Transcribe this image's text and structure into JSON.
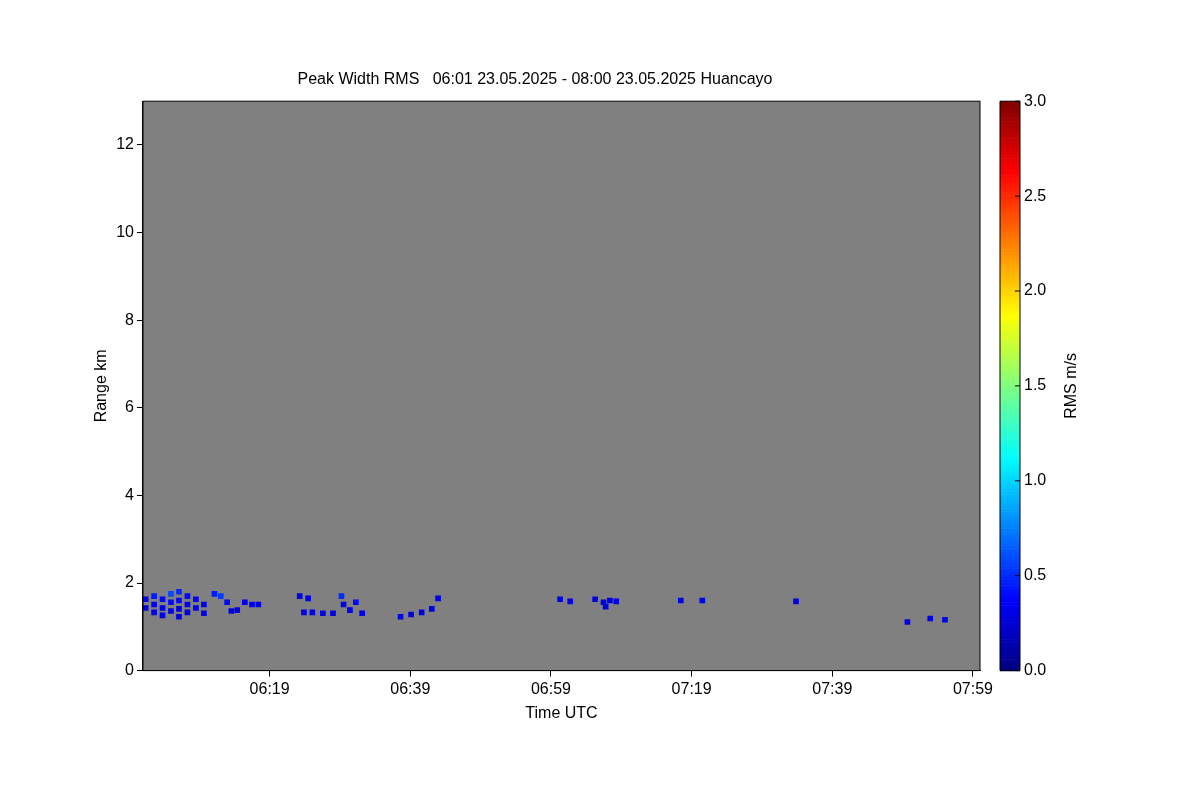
{
  "chart_data": {
    "type": "scatter",
    "title": "Peak Width RMS   06:01 23.05.2025 - 08:00 23.05.2025 Huancayo",
    "xlabel": "Time UTC",
    "ylabel": "Range km",
    "clabel": "RMS m/s",
    "marker": "square",
    "grid": false,
    "legend": false,
    "xlim": [
      6.0167,
      8.0
    ],
    "xticks": [
      {
        "value": 6.3167,
        "label": "06:19"
      },
      {
        "value": 6.65,
        "label": "06:39"
      },
      {
        "value": 6.9833,
        "label": "06:59"
      },
      {
        "value": 7.3167,
        "label": "07:19"
      },
      {
        "value": 7.65,
        "label": "07:39"
      },
      {
        "value": 7.9833,
        "label": "07:59"
      }
    ],
    "ylim": [
      0,
      13
    ],
    "yticks": [
      0,
      2,
      4,
      6,
      8,
      10,
      12
    ],
    "clim": [
      0,
      3
    ],
    "cticks": [
      {
        "value": 0,
        "label": "0.0"
      },
      {
        "value": 0.5,
        "label": "0.5"
      },
      {
        "value": 1,
        "label": "1.0"
      },
      {
        "value": 1.5,
        "label": "1.5"
      },
      {
        "value": 2,
        "label": "2.0"
      },
      {
        "value": 2.5,
        "label": "2.5"
      },
      {
        "value": 3,
        "label": "3.0"
      }
    ],
    "x": [
      6.023,
      6.023,
      6.043,
      6.043,
      6.043,
      6.063,
      6.063,
      6.063,
      6.083,
      6.083,
      6.083,
      6.102,
      6.102,
      6.102,
      6.102,
      6.122,
      6.122,
      6.122,
      6.142,
      6.142,
      6.161,
      6.161,
      6.186,
      6.201,
      6.216,
      6.226,
      6.24,
      6.258,
      6.275,
      6.29,
      6.388,
      6.408,
      6.398,
      6.418,
      6.443,
      6.467,
      6.492,
      6.487,
      6.507,
      6.521,
      6.536,
      6.627,
      6.652,
      6.677,
      6.701,
      6.716,
      7.005,
      7.029,
      7.088,
      7.108,
      7.123,
      7.138,
      7.113,
      7.291,
      7.342,
      7.564,
      7.828,
      7.882,
      7.917
    ],
    "values": [
      1.63,
      1.43,
      1.7,
      1.51,
      1.33,
      1.63,
      1.43,
      1.26,
      1.75,
      1.56,
      1.36,
      1.8,
      1.6,
      1.41,
      1.23,
      1.7,
      1.51,
      1.33,
      1.63,
      1.43,
      1.51,
      1.31,
      1.75,
      1.7,
      1.56,
      1.36,
      1.38,
      1.56,
      1.51,
      1.51,
      1.7,
      1.65,
      1.33,
      1.33,
      1.31,
      1.31,
      1.51,
      1.7,
      1.38,
      1.56,
      1.31,
      1.23,
      1.28,
      1.33,
      1.41,
      1.65,
      1.63,
      1.58,
      1.63,
      1.56,
      1.6,
      1.58,
      1.46,
      1.6,
      1.6,
      1.58,
      1.11,
      1.19,
      1.16
    ],
    "cvalues": [
      0.35,
      0.3,
      0.45,
      0.35,
      0.3,
      0.4,
      0.3,
      0.3,
      0.6,
      0.4,
      0.3,
      0.5,
      0.4,
      0.3,
      0.3,
      0.4,
      0.35,
      0.3,
      0.35,
      0.3,
      0.3,
      0.3,
      0.45,
      0.55,
      0.4,
      0.3,
      0.3,
      0.35,
      0.3,
      0.3,
      0.3,
      0.3,
      0.3,
      0.3,
      0.3,
      0.3,
      0.3,
      0.5,
      0.3,
      0.4,
      0.3,
      0.3,
      0.3,
      0.3,
      0.3,
      0.3,
      0.3,
      0.3,
      0.3,
      0.3,
      0.3,
      0.3,
      0.3,
      0.3,
      0.3,
      0.3,
      0.3,
      0.3,
      0.3
    ]
  }
}
